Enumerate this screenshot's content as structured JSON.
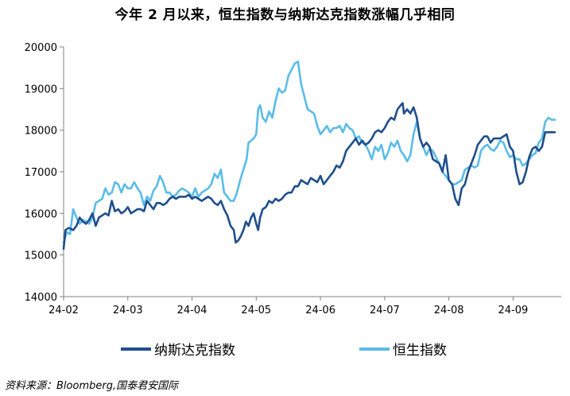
{
  "title": "今年 2 月以来，恒生指数与纳斯达克指数涨幅几乎相同",
  "source": "资料来源：Bloomberg,国泰君安国际",
  "chart_data": {
    "type": "line",
    "title": "今年 2 月以来，恒生指数与纳斯达克指数涨幅几乎相同",
    "xlabel": "",
    "ylabel": "",
    "ylim": [
      14000,
      20000
    ],
    "yticks": [
      14000,
      15000,
      16000,
      17000,
      18000,
      19000,
      20000
    ],
    "x_tick_labels": [
      "24-02",
      "24-03",
      "24-04",
      "24-05",
      "24-06",
      "24-07",
      "24-08",
      "24-09"
    ],
    "x_unit": "months since 24-02 (0 = 24-02, 7 = 24-09)",
    "xlim": [
      0,
      7.75
    ],
    "grid": false,
    "legend_position": "bottom",
    "series": [
      {
        "name": "纳斯达克指数",
        "color": "#1F4E8C",
        "points": [
          [
            0.0,
            15150
          ],
          [
            0.03,
            15600
          ],
          [
            0.08,
            15650
          ],
          [
            0.15,
            15600
          ],
          [
            0.2,
            15700
          ],
          [
            0.25,
            15900
          ],
          [
            0.3,
            15800
          ],
          [
            0.35,
            15750
          ],
          [
            0.4,
            15850
          ],
          [
            0.45,
            16000
          ],
          [
            0.5,
            15700
          ],
          [
            0.55,
            15900
          ],
          [
            0.6,
            15950
          ],
          [
            0.65,
            16000
          ],
          [
            0.7,
            15950
          ],
          [
            0.75,
            16300
          ],
          [
            0.8,
            16050
          ],
          [
            0.85,
            16100
          ],
          [
            0.9,
            16000
          ],
          [
            0.95,
            16050
          ],
          [
            1.0,
            16150
          ],
          [
            1.05,
            16000
          ],
          [
            1.1,
            16050
          ],
          [
            1.15,
            16100
          ],
          [
            1.2,
            16100
          ],
          [
            1.25,
            16050
          ],
          [
            1.3,
            16300
          ],
          [
            1.35,
            16200
          ],
          [
            1.4,
            16100
          ],
          [
            1.45,
            16250
          ],
          [
            1.5,
            16250
          ],
          [
            1.55,
            16200
          ],
          [
            1.6,
            16250
          ],
          [
            1.65,
            16350
          ],
          [
            1.7,
            16400
          ],
          [
            1.75,
            16350
          ],
          [
            1.8,
            16400
          ],
          [
            1.85,
            16400
          ],
          [
            1.9,
            16400
          ],
          [
            1.95,
            16450
          ],
          [
            2.0,
            16350
          ],
          [
            2.05,
            16400
          ],
          [
            2.1,
            16350
          ],
          [
            2.15,
            16300
          ],
          [
            2.2,
            16350
          ],
          [
            2.25,
            16400
          ],
          [
            2.3,
            16350
          ],
          [
            2.35,
            16250
          ],
          [
            2.4,
            16200
          ],
          [
            2.45,
            16300
          ],
          [
            2.5,
            16100
          ],
          [
            2.55,
            15950
          ],
          [
            2.6,
            15700
          ],
          [
            2.65,
            15600
          ],
          [
            2.68,
            15300
          ],
          [
            2.72,
            15350
          ],
          [
            2.76,
            15450
          ],
          [
            2.8,
            15600
          ],
          [
            2.84,
            15800
          ],
          [
            2.88,
            15700
          ],
          [
            2.92,
            15900
          ],
          [
            2.96,
            16000
          ],
          [
            3.0,
            15750
          ],
          [
            3.03,
            15600
          ],
          [
            3.06,
            15900
          ],
          [
            3.1,
            16100
          ],
          [
            3.15,
            16150
          ],
          [
            3.2,
            16300
          ],
          [
            3.25,
            16250
          ],
          [
            3.3,
            16350
          ],
          [
            3.35,
            16300
          ],
          [
            3.4,
            16350
          ],
          [
            3.45,
            16450
          ],
          [
            3.5,
            16500
          ],
          [
            3.55,
            16500
          ],
          [
            3.6,
            16650
          ],
          [
            3.65,
            16650
          ],
          [
            3.7,
            16800
          ],
          [
            3.75,
            16750
          ],
          [
            3.8,
            16700
          ],
          [
            3.85,
            16850
          ],
          [
            3.9,
            16800
          ],
          [
            3.95,
            16750
          ],
          [
            4.0,
            16900
          ],
          [
            4.05,
            16700
          ],
          [
            4.1,
            16800
          ],
          [
            4.15,
            16900
          ],
          [
            4.2,
            17000
          ],
          [
            4.25,
            17150
          ],
          [
            4.3,
            17100
          ],
          [
            4.35,
            17250
          ],
          [
            4.4,
            17500
          ],
          [
            4.45,
            17600
          ],
          [
            4.5,
            17700
          ],
          [
            4.55,
            17800
          ],
          [
            4.6,
            17650
          ],
          [
            4.65,
            17750
          ],
          [
            4.7,
            17650
          ],
          [
            4.75,
            17700
          ],
          [
            4.8,
            17800
          ],
          [
            4.85,
            17950
          ],
          [
            4.9,
            18000
          ],
          [
            4.95,
            17950
          ],
          [
            5.0,
            18050
          ],
          [
            5.05,
            18200
          ],
          [
            5.1,
            18300
          ],
          [
            5.15,
            18250
          ],
          [
            5.2,
            18500
          ],
          [
            5.25,
            18600
          ],
          [
            5.28,
            18650
          ],
          [
            5.3,
            18400
          ],
          [
            5.35,
            18500
          ],
          [
            5.4,
            18400
          ],
          [
            5.45,
            18550
          ],
          [
            5.5,
            18300
          ],
          [
            5.55,
            17800
          ],
          [
            5.6,
            17600
          ],
          [
            5.65,
            17700
          ],
          [
            5.7,
            17600
          ],
          [
            5.75,
            17300
          ],
          [
            5.8,
            17250
          ],
          [
            5.85,
            17200
          ],
          [
            5.9,
            17000
          ],
          [
            5.95,
            17400
          ],
          [
            6.0,
            16800
          ],
          [
            6.05,
            16700
          ],
          [
            6.1,
            16350
          ],
          [
            6.15,
            16200
          ],
          [
            6.2,
            16600
          ],
          [
            6.25,
            16700
          ],
          [
            6.3,
            17000
          ],
          [
            6.35,
            17200
          ],
          [
            6.4,
            17400
          ],
          [
            6.45,
            17650
          ],
          [
            6.5,
            17750
          ],
          [
            6.55,
            17850
          ],
          [
            6.6,
            17850
          ],
          [
            6.65,
            17700
          ],
          [
            6.7,
            17800
          ],
          [
            6.75,
            17800
          ],
          [
            6.8,
            17800
          ],
          [
            6.85,
            17850
          ],
          [
            6.9,
            17900
          ],
          [
            6.95,
            17600
          ],
          [
            7.0,
            17500
          ],
          [
            7.05,
            17000
          ],
          [
            7.1,
            16700
          ],
          [
            7.15,
            16750
          ],
          [
            7.2,
            17000
          ],
          [
            7.25,
            17350
          ],
          [
            7.3,
            17550
          ],
          [
            7.35,
            17600
          ],
          [
            7.4,
            17500
          ],
          [
            7.45,
            17600
          ],
          [
            7.5,
            17950
          ],
          [
            7.55,
            17950
          ],
          [
            7.6,
            17950
          ],
          [
            7.65,
            17950
          ]
        ]
      },
      {
        "name": "恒生指数",
        "color": "#5BBCE8",
        "points": [
          [
            0.0,
            15300
          ],
          [
            0.05,
            15550
          ],
          [
            0.1,
            15500
          ],
          [
            0.15,
            16100
          ],
          [
            0.2,
            15900
          ],
          [
            0.25,
            15750
          ],
          [
            0.3,
            15850
          ],
          [
            0.35,
            15800
          ],
          [
            0.4,
            15750
          ],
          [
            0.45,
            15900
          ],
          [
            0.5,
            16250
          ],
          [
            0.55,
            16300
          ],
          [
            0.6,
            16350
          ],
          [
            0.65,
            16600
          ],
          [
            0.7,
            16450
          ],
          [
            0.75,
            16500
          ],
          [
            0.8,
            16750
          ],
          [
            0.85,
            16700
          ],
          [
            0.9,
            16500
          ],
          [
            0.95,
            16700
          ],
          [
            1.0,
            16600
          ],
          [
            1.05,
            16600
          ],
          [
            1.1,
            16750
          ],
          [
            1.15,
            16600
          ],
          [
            1.2,
            16500
          ],
          [
            1.25,
            16200
          ],
          [
            1.3,
            16400
          ],
          [
            1.35,
            16300
          ],
          [
            1.4,
            16550
          ],
          [
            1.45,
            16650
          ],
          [
            1.5,
            16900
          ],
          [
            1.55,
            16750
          ],
          [
            1.6,
            16500
          ],
          [
            1.65,
            16500
          ],
          [
            1.7,
            16400
          ],
          [
            1.75,
            16450
          ],
          [
            1.8,
            16550
          ],
          [
            1.85,
            16600
          ],
          [
            1.9,
            16550
          ],
          [
            1.95,
            16500
          ],
          [
            2.0,
            16400
          ],
          [
            2.05,
            16600
          ],
          [
            2.1,
            16400
          ],
          [
            2.15,
            16500
          ],
          [
            2.2,
            16550
          ],
          [
            2.25,
            16600
          ],
          [
            2.3,
            16700
          ],
          [
            2.35,
            16950
          ],
          [
            2.4,
            16850
          ],
          [
            2.45,
            17050
          ],
          [
            2.5,
            16500
          ],
          [
            2.55,
            16400
          ],
          [
            2.6,
            16300
          ],
          [
            2.65,
            16300
          ],
          [
            2.7,
            16500
          ],
          [
            2.75,
            16800
          ],
          [
            2.8,
            17050
          ],
          [
            2.85,
            17300
          ],
          [
            2.88,
            17700
          ],
          [
            2.92,
            17750
          ],
          [
            2.96,
            17800
          ],
          [
            3.0,
            17900
          ],
          [
            3.03,
            18500
          ],
          [
            3.06,
            18600
          ],
          [
            3.1,
            18300
          ],
          [
            3.15,
            18200
          ],
          [
            3.2,
            18450
          ],
          [
            3.25,
            18300
          ],
          [
            3.3,
            18700
          ],
          [
            3.35,
            19000
          ],
          [
            3.4,
            18900
          ],
          [
            3.45,
            18950
          ],
          [
            3.5,
            19300
          ],
          [
            3.55,
            19450
          ],
          [
            3.6,
            19600
          ],
          [
            3.65,
            19650
          ],
          [
            3.7,
            19100
          ],
          [
            3.75,
            18800
          ],
          [
            3.8,
            18500
          ],
          [
            3.85,
            18450
          ],
          [
            3.9,
            18400
          ],
          [
            3.95,
            18100
          ],
          [
            4.0,
            17900
          ],
          [
            4.05,
            18000
          ],
          [
            4.1,
            18100
          ],
          [
            4.15,
            17950
          ],
          [
            4.2,
            18050
          ],
          [
            4.25,
            18050
          ],
          [
            4.3,
            18100
          ],
          [
            4.35,
            17950
          ],
          [
            4.4,
            18150
          ],
          [
            4.45,
            18050
          ],
          [
            4.5,
            18000
          ],
          [
            4.55,
            17800
          ],
          [
            4.6,
            17850
          ],
          [
            4.65,
            17700
          ],
          [
            4.7,
            17650
          ],
          [
            4.75,
            17500
          ],
          [
            4.8,
            17300
          ],
          [
            4.85,
            17600
          ],
          [
            4.9,
            17500
          ],
          [
            4.95,
            17650
          ],
          [
            5.0,
            17300
          ],
          [
            5.05,
            17450
          ],
          [
            5.1,
            17700
          ],
          [
            5.15,
            17600
          ],
          [
            5.2,
            17750
          ],
          [
            5.25,
            17500
          ],
          [
            5.3,
            17400
          ],
          [
            5.35,
            17250
          ],
          [
            5.4,
            17400
          ],
          [
            5.45,
            17900
          ],
          [
            5.5,
            18200
          ],
          [
            5.55,
            17800
          ],
          [
            5.6,
            17600
          ],
          [
            5.65,
            17400
          ],
          [
            5.7,
            17550
          ],
          [
            5.75,
            17500
          ],
          [
            5.8,
            17350
          ],
          [
            5.85,
            17200
          ],
          [
            5.9,
            17000
          ],
          [
            5.95,
            16900
          ],
          [
            6.0,
            16800
          ],
          [
            6.05,
            16700
          ],
          [
            6.1,
            16700
          ],
          [
            6.15,
            16750
          ],
          [
            6.2,
            16800
          ],
          [
            6.25,
            17050
          ],
          [
            6.3,
            17100
          ],
          [
            6.35,
            17150
          ],
          [
            6.4,
            17100
          ],
          [
            6.45,
            17150
          ],
          [
            6.5,
            17500
          ],
          [
            6.55,
            17600
          ],
          [
            6.6,
            17650
          ],
          [
            6.65,
            17550
          ],
          [
            6.7,
            17500
          ],
          [
            6.75,
            17600
          ],
          [
            6.8,
            17750
          ],
          [
            6.85,
            17700
          ],
          [
            6.9,
            17500
          ],
          [
            6.95,
            17350
          ],
          [
            7.0,
            17400
          ],
          [
            7.05,
            17300
          ],
          [
            7.1,
            17300
          ],
          [
            7.15,
            17150
          ],
          [
            7.2,
            17200
          ],
          [
            7.25,
            17300
          ],
          [
            7.3,
            17400
          ],
          [
            7.35,
            17450
          ],
          [
            7.4,
            17700
          ],
          [
            7.45,
            17800
          ],
          [
            7.5,
            18200
          ],
          [
            7.55,
            18300
          ],
          [
            7.6,
            18250
          ],
          [
            7.65,
            18250
          ]
        ]
      }
    ]
  }
}
